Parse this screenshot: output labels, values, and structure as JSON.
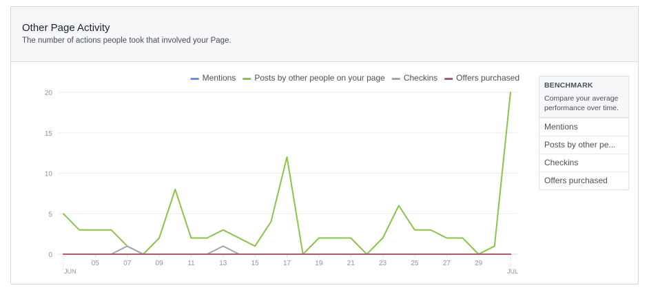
{
  "header": {
    "title": "Other Page Activity",
    "subtitle": "The number of actions people took that involved your Page."
  },
  "benchmark": {
    "title": "BENCHMARK",
    "description": "Compare your average performance over time.",
    "items": [
      "Mentions",
      "Posts by other pe...",
      "Checkins",
      "Offers purchased"
    ]
  },
  "chart_data": {
    "type": "line",
    "title": "",
    "xlabel": "",
    "ylabel": "",
    "ylim": [
      0,
      20
    ],
    "yticks": [
      0,
      5,
      10,
      15,
      20
    ],
    "grid": true,
    "legend_position": "top-right",
    "x": [
      "Jun 03",
      "Jun 04",
      "Jun 05",
      "Jun 06",
      "Jun 07",
      "Jun 08",
      "Jun 09",
      "Jun 10",
      "Jun 11",
      "Jun 12",
      "Jun 13",
      "Jun 14",
      "Jun 15",
      "Jun 16",
      "Jun 17",
      "Jun 18",
      "Jun 19",
      "Jun 20",
      "Jun 21",
      "Jun 22",
      "Jun 23",
      "Jun 24",
      "Jun 25",
      "Jun 26",
      "Jun 27",
      "Jun 28",
      "Jun 29",
      "Jun 30",
      "Jul 01"
    ],
    "xtick_labels": [
      "05",
      "07",
      "09",
      "11",
      "13",
      "15",
      "17",
      "19",
      "21",
      "23",
      "25",
      "27",
      "29"
    ],
    "xtick_index": [
      2,
      4,
      6,
      8,
      10,
      12,
      14,
      16,
      18,
      20,
      22,
      24,
      26
    ],
    "month_labels": [
      {
        "label": "JUN",
        "index": 0
      },
      {
        "label": "JUL",
        "index": 28
      }
    ],
    "series": [
      {
        "name": "Mentions",
        "color": "#5890ff",
        "values": [
          0,
          0,
          0,
          0,
          0,
          0,
          0,
          0,
          0,
          0,
          0,
          0,
          0,
          0,
          0,
          0,
          0,
          0,
          0,
          0,
          0,
          0,
          0,
          0,
          0,
          0,
          0,
          0,
          0
        ]
      },
      {
        "name": "Posts by other people on your page",
        "color": "#8ac34a",
        "values": [
          5,
          3,
          3,
          3,
          1,
          0,
          2,
          8,
          2,
          2,
          3,
          2,
          1,
          4,
          12,
          0,
          2,
          2,
          2,
          0,
          2,
          6,
          3,
          3,
          2,
          2,
          0,
          1,
          20
        ]
      },
      {
        "name": "Checkins",
        "color": "#9ea7b8",
        "values": [
          0,
          0,
          0,
          0,
          1,
          0,
          0,
          0,
          0,
          0,
          1,
          0,
          0,
          0,
          0,
          0,
          0,
          0,
          0,
          0,
          0,
          0,
          0,
          0,
          0,
          0,
          0,
          0,
          0
        ]
      },
      {
        "name": "Offers purchased",
        "color": "#b5566a",
        "values": [
          0,
          0,
          0,
          0,
          0,
          0,
          0,
          0,
          0,
          0,
          0,
          0,
          0,
          0,
          0,
          0,
          0,
          0,
          0,
          0,
          0,
          0,
          0,
          0,
          0,
          0,
          0,
          0,
          0
        ]
      }
    ]
  }
}
